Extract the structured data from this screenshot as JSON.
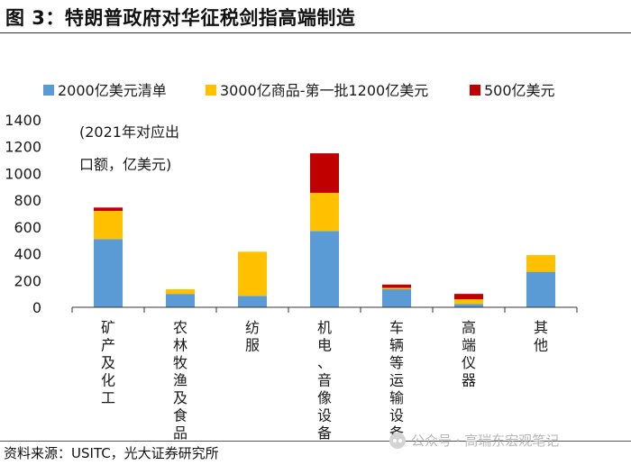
{
  "header": {
    "title": "图 3：特朗普政府对华征税剑指高端制造"
  },
  "footer": {
    "source": "资料来源：USITC，光大证券研究所",
    "watermark": "公众号 · 高瑞东宏观笔记"
  },
  "chart_data": {
    "type": "bar",
    "stacked": true,
    "annotation_lines": [
      "(2021年对应出",
      "口额，亿美元)"
    ],
    "ylim": [
      0,
      1400
    ],
    "yticks": [
      0,
      200,
      400,
      600,
      800,
      1000,
      1200,
      1400
    ],
    "categories": [
      "矿产及化工",
      "农林牧渔及食品",
      "纺服",
      "机电、音像设备",
      "车辆等运输设备",
      "高端仪器",
      "其他"
    ],
    "series": [
      {
        "name": "2000亿美元清单",
        "color": "#5B9BD5",
        "values": [
          510,
          100,
          85,
          570,
          135,
          25,
          265
        ]
      },
      {
        "name": "3000亿商品-第一批1200亿美元",
        "color": "#FFC000",
        "values": [
          210,
          35,
          330,
          285,
          10,
          35,
          125
        ]
      },
      {
        "name": "500亿美元",
        "color": "#C00000",
        "values": [
          25,
          0,
          0,
          295,
          25,
          40,
          0
        ]
      }
    ],
    "legend_position": "top"
  }
}
